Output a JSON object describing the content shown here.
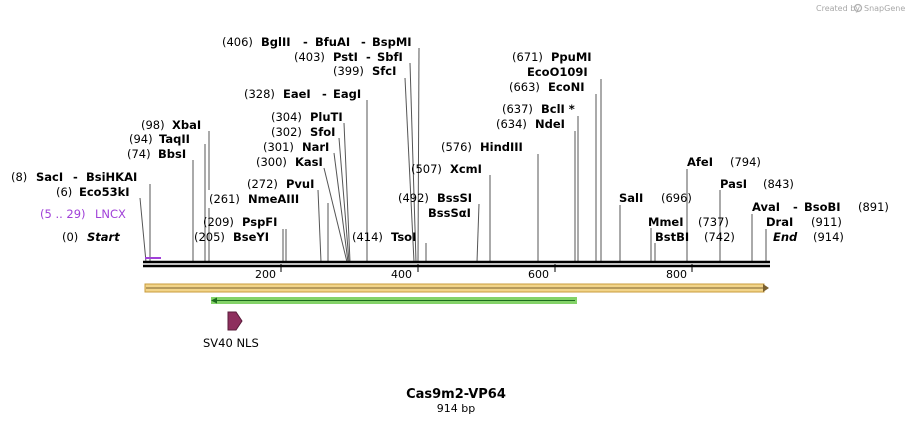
{
  "credit": {
    "prefix": "Created by",
    "brand": "SnapGene"
  },
  "map": {
    "title": "Cas9m2-VP64",
    "length_label": "914 bp",
    "ticks": [
      "200",
      "400",
      "600",
      "800"
    ],
    "start": {
      "pos": "(0)",
      "label": "Start"
    },
    "end": {
      "pos": "(914)",
      "label": "End"
    },
    "feature_lncx": {
      "pos": "(5 .. 29)",
      "label": "LNCX"
    },
    "sv40_label": "SV40 NLS",
    "colors": {
      "lncx": "#a040d8",
      "sv40": "#8e2f5e",
      "orf_fill": "#f2d489",
      "orf_border": "#c89b3c",
      "green_orf": "#6fcb4f"
    },
    "sites": {
      "saci_pos": "(8)",
      "saci": "SacI",
      "bsihkai": "BsiHKAI",
      "eco53ki_pos": "(6)",
      "eco53ki": "Eco53kI",
      "bbsi_pos": "(74)",
      "bbsi": "BbsI",
      "taqii_pos": "(94)",
      "taqii": "TaqII",
      "xbai_pos": "(98)",
      "xbai": "XbaI",
      "bseyi_pos": "(205)",
      "bseyi": "BseYI",
      "pspfi_pos": "(209)",
      "pspfi": "PspFI",
      "nmeaiii_pos": "(261)",
      "nmeaiii": "NmeAIII",
      "pvui_pos": "(272)",
      "pvui": "PvuI",
      "kasi_pos": "(300)",
      "kasi": "KasI",
      "nari_pos": "(301)",
      "nari": "NarI",
      "sfoi_pos": "(302)",
      "sfoi": "SfoI",
      "pluti_pos": "(304)",
      "pluti": "PluTI",
      "eaei_pos": "(328)",
      "eaei": "EaeI",
      "eagi": "EagI",
      "sfci_pos": "(399)",
      "sfci": "SfcI",
      "psti_pos": "(403)",
      "psti": "PstI",
      "sbfi": "SbfI",
      "bglii_pos": "(406)",
      "bglii": "BglII",
      "bfuai": "BfuAI",
      "bspmi": "BspMI",
      "tsoi_pos": "(414)",
      "tsoi": "TsoI",
      "bsssi_pos": "(492)",
      "bsssi": "BssSI",
      "bsssai": "BssSαI",
      "xcmi_pos": "(507)",
      "xcmi": "XcmI",
      "hindiii_pos": "(576)",
      "hindiii": "HindIII",
      "ndei_pos": "(634)",
      "ndei": "NdeI",
      "bcli_pos": "(637)",
      "bcli": "BclI *",
      "econi_pos": "(663)",
      "econi": "EcoNI",
      "ecoo109i": "EcoO109I",
      "ppumi_pos": "(671)",
      "ppumi": "PpuMI",
      "sali": "SalI",
      "sali_pos": "(696)",
      "mmei": "MmeI",
      "mmei_pos": "(737)",
      "bstbi": "BstBI",
      "bstbi_pos": "(742)",
      "afei": "AfeI",
      "afei_pos": "(794)",
      "pasi": "PasI",
      "pasi_pos": "(843)",
      "avai": "AvaI",
      "bsobi": "BsoBI",
      "avai_pos": "(891)",
      "drai": "DraI",
      "drai_pos": "(911)"
    }
  }
}
